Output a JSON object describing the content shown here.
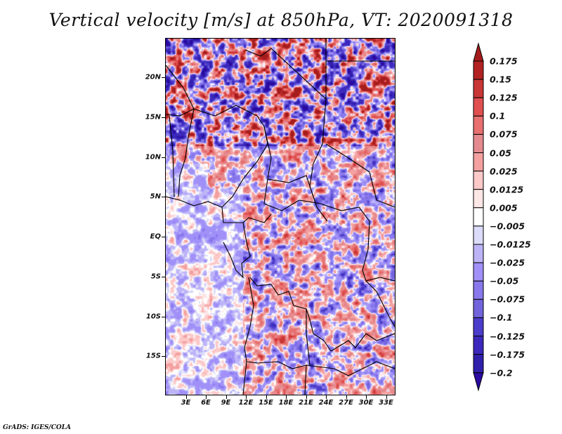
{
  "title": "Vertical velocity [m/s] at 850hPa, VT: 2020091318",
  "credit": "GrADS: IGES/COLA",
  "map": {
    "region": "Central Africa",
    "lat_range": [
      "19S",
      "25N"
    ],
    "lon_range": [
      "0E",
      "35E"
    ],
    "y_ticks": [
      {
        "label": "20N",
        "lat": 20
      },
      {
        "label": "15N",
        "lat": 15
      },
      {
        "label": "10N",
        "lat": 10
      },
      {
        "label": "5N",
        "lat": 5
      },
      {
        "label": "EQ",
        "lat": 0
      },
      {
        "label": "5S",
        "lat": -5
      },
      {
        "label": "10S",
        "lat": -10
      },
      {
        "label": "15S",
        "lat": -15
      }
    ],
    "x_ticks": [
      {
        "label": "3E",
        "lon": 3
      },
      {
        "label": "6E",
        "lon": 6
      },
      {
        "label": "9E",
        "lon": 9
      },
      {
        "label": "12E",
        "lon": 12
      },
      {
        "label": "15E",
        "lon": 15
      },
      {
        "label": "18E",
        "lon": 18
      },
      {
        "label": "21E",
        "lon": 21
      },
      {
        "label": "24E",
        "lon": 24
      },
      {
        "label": "27E",
        "lon": 27
      },
      {
        "label": "30E",
        "lon": 30
      },
      {
        "label": "33E",
        "lon": 33
      }
    ]
  },
  "colorbar": {
    "top_arrow_color": "#a51c1c",
    "bottom_arrow_color": "#2a0aa0",
    "levels": [
      {
        "label": "0.175",
        "color": "#b22222"
      },
      {
        "label": "0.15",
        "color": "#c93636"
      },
      {
        "label": "0.125",
        "color": "#e05050"
      },
      {
        "label": "0.1",
        "color": "#e87070"
      },
      {
        "label": "0.075",
        "color": "#e48a8e"
      },
      {
        "label": "0.05",
        "color": "#f4a0a0"
      },
      {
        "label": "0.025",
        "color": "#fcc8c8"
      },
      {
        "label": "0.0125",
        "color": "#fde6e6"
      },
      {
        "label": "0.005",
        "color": "#ffffff"
      },
      {
        "label": "−0.005",
        "color": "#dcdcfa"
      },
      {
        "label": "−0.0125",
        "color": "#bdb4f8"
      },
      {
        "label": "−0.025",
        "color": "#a090f8"
      },
      {
        "label": "−0.05",
        "color": "#8878ec"
      },
      {
        "label": "−0.075",
        "color": "#7264dc"
      },
      {
        "label": "−0.1",
        "color": "#4c3ccc"
      },
      {
        "label": "−0.125",
        "color": "#3c28bc"
      },
      {
        "label": "−0.175",
        "color": "#3020ac"
      },
      {
        "label": "−0.2",
        "color": ""
      }
    ]
  }
}
